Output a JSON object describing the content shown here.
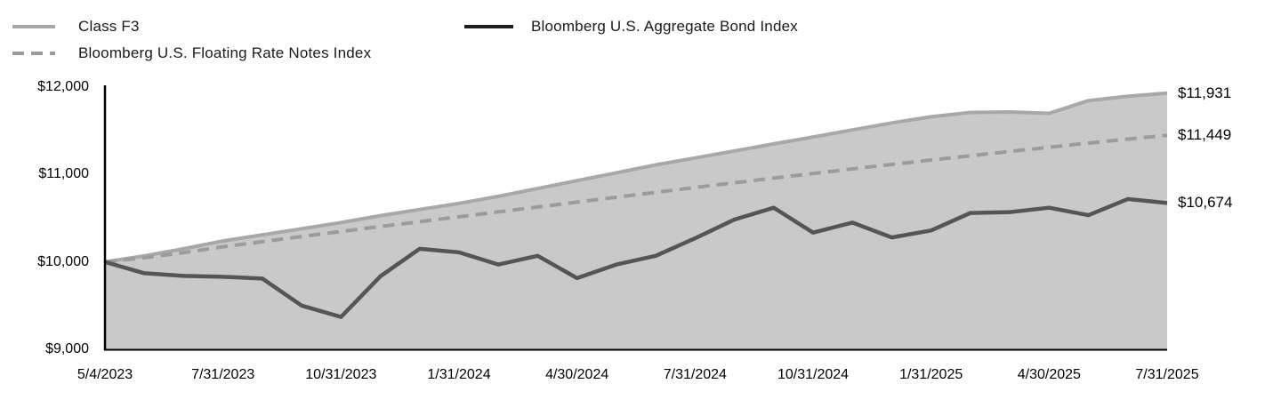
{
  "legend": {
    "items": [
      {
        "label": "Class F3",
        "style": "solid",
        "color": "#a6a6a6"
      },
      {
        "label": "Bloomberg U.S. Floating Rate Notes Index",
        "style": "dashed",
        "color": "#9b9b9b"
      },
      {
        "label": "Bloomberg U.S. Aggregate Bond Index",
        "style": "solid",
        "color": "#1f1f1f"
      }
    ]
  },
  "chart_data": {
    "type": "area",
    "title": "",
    "xlabel": "",
    "ylabel": "",
    "grid": false,
    "legend_position": "top-left",
    "ylim": [
      9000,
      12000
    ],
    "axis_color": "#000000",
    "x": [
      "5/4/2023",
      "5/31/2023",
      "6/30/2023",
      "7/31/2023",
      "8/31/2023",
      "9/30/2023",
      "10/31/2023",
      "11/30/2023",
      "12/31/2023",
      "1/31/2024",
      "2/29/2024",
      "3/31/2024",
      "4/30/2024",
      "5/31/2024",
      "6/30/2024",
      "7/31/2024",
      "8/31/2024",
      "9/30/2024",
      "10/31/2024",
      "11/30/2024",
      "12/31/2024",
      "1/31/2025",
      "2/28/2025",
      "3/31/2025",
      "4/30/2025",
      "5/31/2025",
      "6/30/2025",
      "7/31/2025"
    ],
    "x_tick_labels": [
      "5/4/2023",
      "7/31/2023",
      "10/31/2023",
      "1/31/2024",
      "4/30/2024",
      "7/31/2024",
      "10/31/2024",
      "1/31/2025",
      "4/30/2025",
      "7/31/2025"
    ],
    "x_tick_indices": [
      0,
      3,
      6,
      9,
      12,
      15,
      18,
      21,
      24,
      27
    ],
    "y_ticks": [
      {
        "label": "$12,000",
        "value": 12000
      },
      {
        "label": "$11,000",
        "value": 11000
      },
      {
        "label": "$10,000",
        "value": 10000
      },
      {
        "label": "$9,000",
        "value": 9000
      }
    ],
    "series": [
      {
        "name": "Class F3",
        "line": "solid",
        "color": "#a8a8a8",
        "fill": "#c9c9c9",
        "end_label": "$11,931",
        "end_value": 11931,
        "values": [
          10000,
          10070,
          10150,
          10240,
          10310,
          10380,
          10450,
          10530,
          10600,
          10670,
          10750,
          10840,
          10930,
          11020,
          11110,
          11190,
          11270,
          11350,
          11430,
          11510,
          11590,
          11660,
          11710,
          11715,
          11700,
          11845,
          11895,
          11931
        ]
      },
      {
        "name": "Bloomberg U.S. Floating Rate Notes Index",
        "line": "dashed",
        "color": "#9b9b9b",
        "fill": "none",
        "end_label": "$11,449",
        "end_value": 11449,
        "values": [
          10000,
          10048,
          10106,
          10174,
          10232,
          10290,
          10348,
          10404,
          10460,
          10516,
          10572,
          10628,
          10684,
          10740,
          10796,
          10852,
          10906,
          10960,
          11012,
          11064,
          11115,
          11166,
          11215,
          11264,
          11312,
          11359,
          11405,
          11449
        ]
      },
      {
        "name": "Bloomberg U.S. Aggregate Bond Index",
        "line": "solid",
        "color": "#555555",
        "fill": "none",
        "end_label": "$10,674",
        "end_value": 10674,
        "values": [
          10000,
          9870,
          9840,
          9830,
          9810,
          9500,
          9370,
          9835,
          10150,
          10110,
          9970,
          10070,
          9815,
          9970,
          10070,
          10270,
          10485,
          10620,
          10335,
          10450,
          10280,
          10360,
          10560,
          10570,
          10620,
          10535,
          10720,
          10674
        ]
      }
    ]
  }
}
